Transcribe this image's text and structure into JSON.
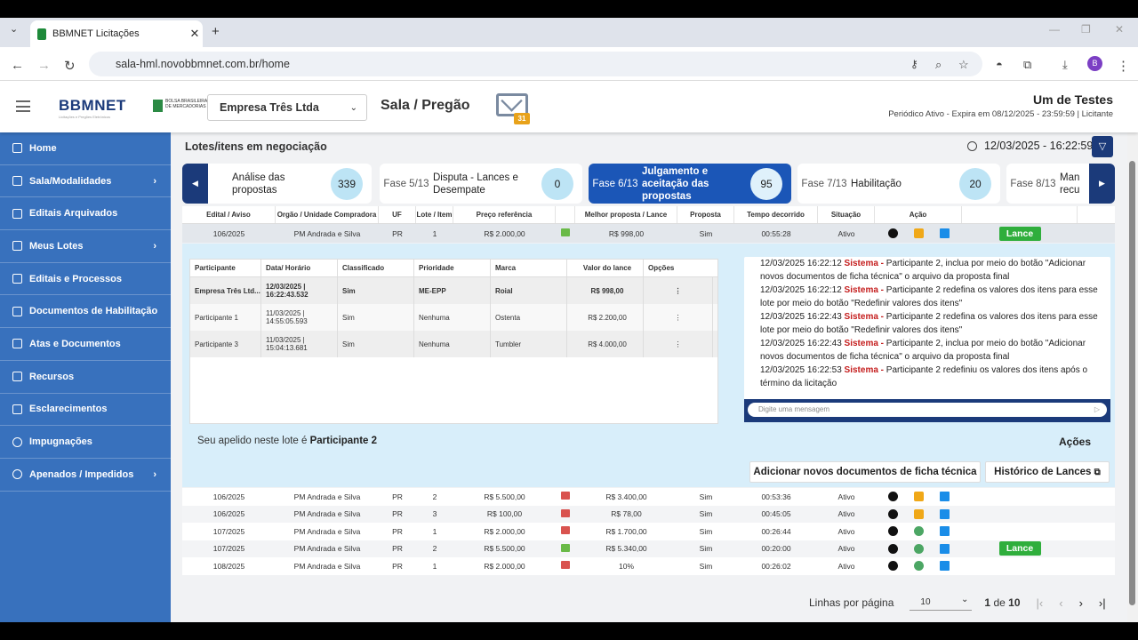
{
  "browser": {
    "tab_title": "BBMNET Licitações",
    "url": "sala-hml.novobbmnet.com.br/home",
    "avatar": "B"
  },
  "header": {
    "logo": "BBMNET",
    "logo_sub": "Licitações e Pregões Eletrônicos",
    "b3_text": "BOLSA BRASILEIRA DE MERCADORIAS",
    "empresa": "Empresa Três Ltda",
    "page_title": "Sala / Pregão",
    "mail_badge": "31",
    "user_name": "Um de Testes",
    "user_period": "Periódico Ativo - Expira em 08/12/2025 - 23:59:59 | Licitante"
  },
  "sidebar": {
    "items": [
      {
        "label": "Home"
      },
      {
        "label": "Sala/Modalidades"
      },
      {
        "label": "Editais Arquivados"
      },
      {
        "label": "Meus Lotes"
      },
      {
        "label": "Editais e Processos"
      },
      {
        "label": "Documentos de Habilitação"
      },
      {
        "label": "Atas e Documentos"
      },
      {
        "label": "Recursos"
      },
      {
        "label": "Esclarecimentos"
      },
      {
        "label": "Impugnações"
      },
      {
        "label": "Apenados / Impedidos"
      }
    ]
  },
  "main": {
    "heading": "Lotes/itens em negociação",
    "datetime": "12/03/2025 - 16:22:59"
  },
  "phases": [
    {
      "label": "",
      "name": "Análise das propostas",
      "count": "339"
    },
    {
      "label": "Fase 5/13",
      "name": "Disputa - Lances e Desempate",
      "count": "0"
    },
    {
      "label": "Fase 6/13",
      "name": "Julgamento e aceitação das propostas",
      "count": "95"
    },
    {
      "label": "Fase 7/13",
      "name": "Habilitação",
      "count": "20"
    },
    {
      "label": "Fase 8/13",
      "name": "Man recu",
      "count": ""
    }
  ],
  "table": {
    "headers": [
      "Edital / Aviso",
      "Orgão / Unidade Compradora",
      "UF",
      "Lote / Item",
      "Preço referência",
      "",
      "Melhor proposta / Lance",
      "Proposta",
      "Tempo decorrido",
      "Situação",
      "Ação",
      ""
    ],
    "first_row": {
      "edital": "106/2025",
      "orgao": "PM Andrada e Silva",
      "uf": "PR",
      "lote": "1",
      "preco": "R$ 2.000,00",
      "melhor": "R$ 998,00",
      "proposta": "Sim",
      "tempo": "00:55:28",
      "situacao": "Ativo",
      "lance": "Lance"
    },
    "rows": [
      {
        "edital": "106/2025",
        "orgao": "PM Andrada e Silva",
        "uf": "PR",
        "lote": "2",
        "preco": "R$ 5.500,00",
        "thumb": "down",
        "melhor": "R$ 3.400,00",
        "proposta": "Sim",
        "tempo": "00:53:36",
        "situacao": "Ativo",
        "icon2": "box",
        "lance": ""
      },
      {
        "edital": "106/2025",
        "orgao": "PM Andrada e Silva",
        "uf": "PR",
        "lote": "3",
        "preco": "R$ 100,00",
        "thumb": "down",
        "melhor": "R$ 78,00",
        "proposta": "Sim",
        "tempo": "00:45:05",
        "situacao": "Ativo",
        "icon2": "box",
        "lance": ""
      },
      {
        "edital": "107/2025",
        "orgao": "PM Andrada e Silva",
        "uf": "PR",
        "lote": "1",
        "preco": "R$ 2.000,00",
        "thumb": "down",
        "melhor": "R$ 1.700,00",
        "proposta": "Sim",
        "tempo": "00:26:44",
        "situacao": "Ativo",
        "icon2": "clock",
        "lance": ""
      },
      {
        "edital": "107/2025",
        "orgao": "PM Andrada e Silva",
        "uf": "PR",
        "lote": "2",
        "preco": "R$ 5.500,00",
        "thumb": "up",
        "melhor": "R$ 5.340,00",
        "proposta": "Sim",
        "tempo": "00:20:00",
        "situacao": "Ativo",
        "icon2": "clock",
        "lance": "Lance"
      },
      {
        "edital": "108/2025",
        "orgao": "PM Andrada e Silva",
        "uf": "PR",
        "lote": "1",
        "preco": "R$ 2.000,00",
        "thumb": "down",
        "melhor": "10%",
        "proposta": "Sim",
        "tempo": "00:26:02",
        "situacao": "Ativo",
        "icon2": "clock",
        "lance": ""
      }
    ]
  },
  "participants": {
    "headers": [
      "Participante",
      "Data/ Horário",
      "Classificado",
      "Prioridade",
      "Marca",
      "Valor do lance",
      "Opções"
    ],
    "rows": [
      {
        "nome": "Empresa Três Ltd...",
        "data": "12/03/2025 | 16:22:43.532",
        "classificado": "Sim",
        "prioridade": "ME-EPP",
        "marca": "Roial",
        "valor": "R$ 998,00"
      },
      {
        "nome": "Participante 1",
        "data": "11/03/2025 | 14:55:05.593",
        "classificado": "Sim",
        "prioridade": "Nenhuma",
        "marca": "Ostenta",
        "valor": "R$ 2.200,00"
      },
      {
        "nome": "Participante 3",
        "data": "11/03/2025 | 15:04:13.681",
        "classificado": "Sim",
        "prioridade": "Nenhuma",
        "marca": "Tumbler",
        "valor": "R$ 4.000,00"
      }
    ]
  },
  "chat": {
    "messages": [
      {
        "time": "12/03/2025 16:22:12",
        "sender": "Sistema -",
        "text": "Participante 2, inclua por meio do botão \"Adicionar novos documentos de ficha técnica\" o arquivo da proposta final"
      },
      {
        "time": "12/03/2025 16:22:12",
        "sender": "Sistema -",
        "text": "Participante 2 redefina os valores dos itens para esse lote por meio do botão \"Redefinir valores dos itens\""
      },
      {
        "time": "12/03/2025 16:22:43",
        "sender": "Sistema -",
        "text": "Participante 2 redefina os valores dos itens para esse lote por meio do botão \"Redefinir valores dos itens\""
      },
      {
        "time": "12/03/2025 16:22:43",
        "sender": "Sistema -",
        "text": "Participante 2, inclua por meio do botão \"Adicionar novos documentos de ficha técnica\" o arquivo da proposta final"
      },
      {
        "time": "12/03/2025 16:22:53",
        "sender": "Sistema -",
        "text": "Participante 2 redefiniu os valores dos itens após o término da licitação"
      }
    ],
    "placeholder": "Digite uma mensagem"
  },
  "lote": {
    "apelido_prefix": "Seu apelido neste lote é ",
    "apelido": "Participante 2",
    "acoes": "Ações",
    "btn_docs": "Adicionar novos documentos de ficha técnica",
    "btn_hist": "Histórico de Lances"
  },
  "pager": {
    "label": "Linhas por página",
    "per_page": "10",
    "page": "1",
    "of": "de",
    "total": "10"
  }
}
